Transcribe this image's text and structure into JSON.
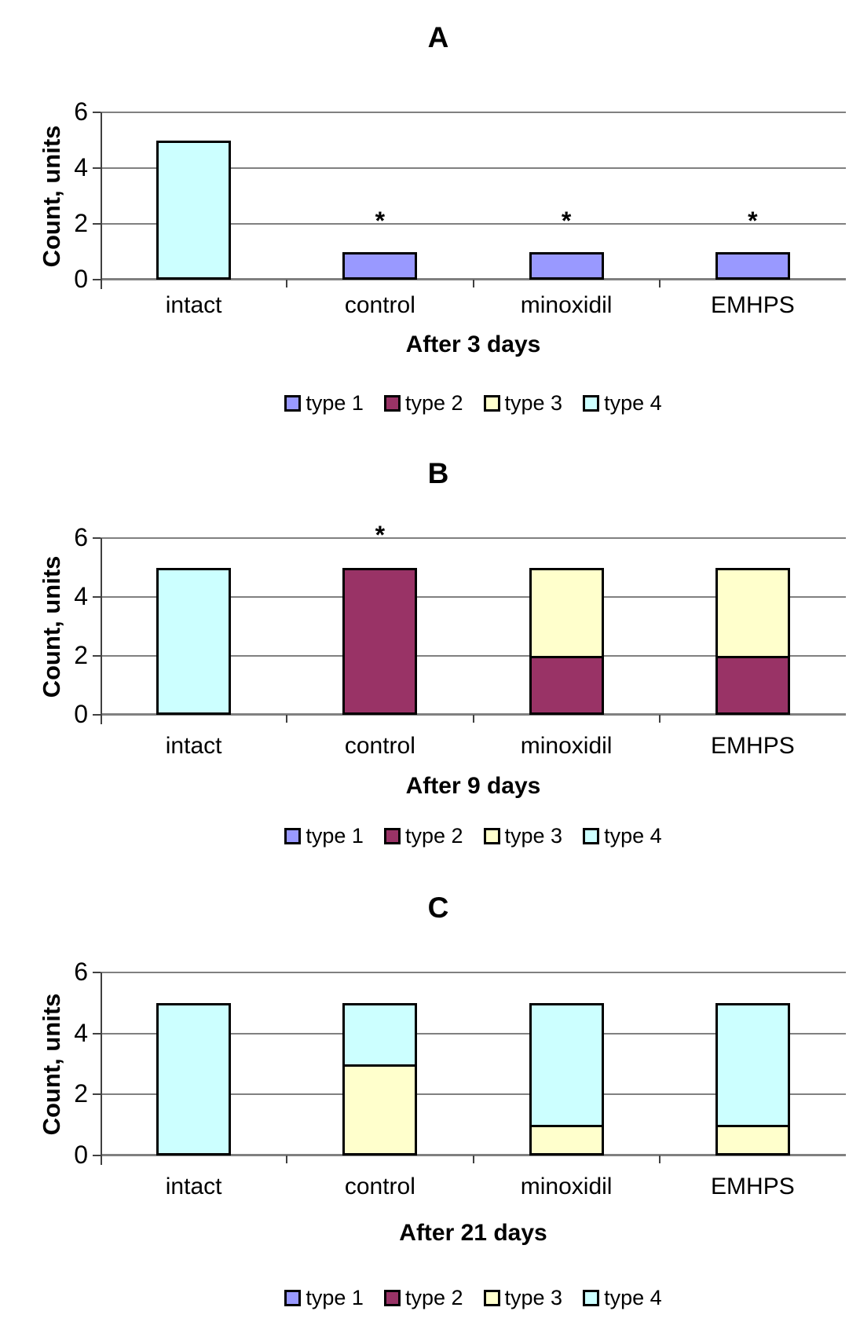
{
  "colors": {
    "background": "#FFFFFF",
    "gridline": "#808080",
    "axis_line": "#808080",
    "tick_color": "#404040",
    "bar_border": "#000000",
    "text": "#000000",
    "type1": "#9999FF",
    "type2": "#993366",
    "type3": "#FFFFCC",
    "type4": "#CCFFFF"
  },
  "chart_data": [
    {
      "type": "bar",
      "stacked": true,
      "title": "A",
      "xlabel": "After 3 days",
      "ylabel": "Count, units",
      "ylim": [
        0,
        6
      ],
      "yticks": [
        0,
        2,
        4,
        6
      ],
      "grid": true,
      "legend_position": "bottom",
      "categories": [
        "intact",
        "control",
        "minoxidil",
        "EMHPS"
      ],
      "series": [
        {
          "name": "type 1",
          "color": "#9999FF",
          "values": [
            0,
            1,
            1,
            1
          ]
        },
        {
          "name": "type 2",
          "color": "#993366",
          "values": [
            0,
            0,
            0,
            0
          ]
        },
        {
          "name": "type 3",
          "color": "#FFFFCC",
          "values": [
            0,
            0,
            0,
            0
          ]
        },
        {
          "name": "type 4",
          "color": "#CCFFFF",
          "values": [
            5,
            0,
            0,
            0
          ]
        }
      ],
      "annotations": [
        {
          "text": "*",
          "category": "control",
          "y": 2
        },
        {
          "text": "*",
          "category": "minoxidil",
          "y": 2
        },
        {
          "text": "*",
          "category": "EMHPS",
          "y": 2
        }
      ]
    },
    {
      "type": "bar",
      "stacked": true,
      "title": "B",
      "xlabel": "After 9 days",
      "ylabel": "Count, units",
      "ylim": [
        0,
        6
      ],
      "yticks": [
        0,
        2,
        4,
        6
      ],
      "grid": true,
      "legend_position": "bottom",
      "categories": [
        "intact",
        "control",
        "minoxidil",
        "EMHPS"
      ],
      "series": [
        {
          "name": "type 1",
          "color": "#9999FF",
          "values": [
            0,
            0,
            0,
            0
          ]
        },
        {
          "name": "type 2",
          "color": "#993366",
          "values": [
            0,
            5,
            2,
            2
          ]
        },
        {
          "name": "type 3",
          "color": "#FFFFCC",
          "values": [
            0,
            0,
            3,
            3
          ]
        },
        {
          "name": "type 4",
          "color": "#CCFFFF",
          "values": [
            5,
            0,
            0,
            0
          ]
        }
      ],
      "annotations": [
        {
          "text": "*",
          "category": "control",
          "y": 6
        }
      ]
    },
    {
      "type": "bar",
      "stacked": true,
      "title": "C",
      "xlabel": "After 21 days",
      "ylabel": "Count, units",
      "ylim": [
        0,
        6
      ],
      "yticks": [
        0,
        2,
        4,
        6
      ],
      "grid": true,
      "legend_position": "bottom",
      "categories": [
        "intact",
        "control",
        "minoxidil",
        "EMHPS"
      ],
      "series": [
        {
          "name": "type 1",
          "color": "#9999FF",
          "values": [
            0,
            0,
            0,
            0
          ]
        },
        {
          "name": "type 2",
          "color": "#993366",
          "values": [
            0,
            0,
            0,
            0
          ]
        },
        {
          "name": "type 3",
          "color": "#FFFFCC",
          "values": [
            0,
            3,
            1,
            1
          ]
        },
        {
          "name": "type 4",
          "color": "#CCFFFF",
          "values": [
            5,
            2,
            4,
            4
          ]
        }
      ],
      "annotations": []
    }
  ]
}
